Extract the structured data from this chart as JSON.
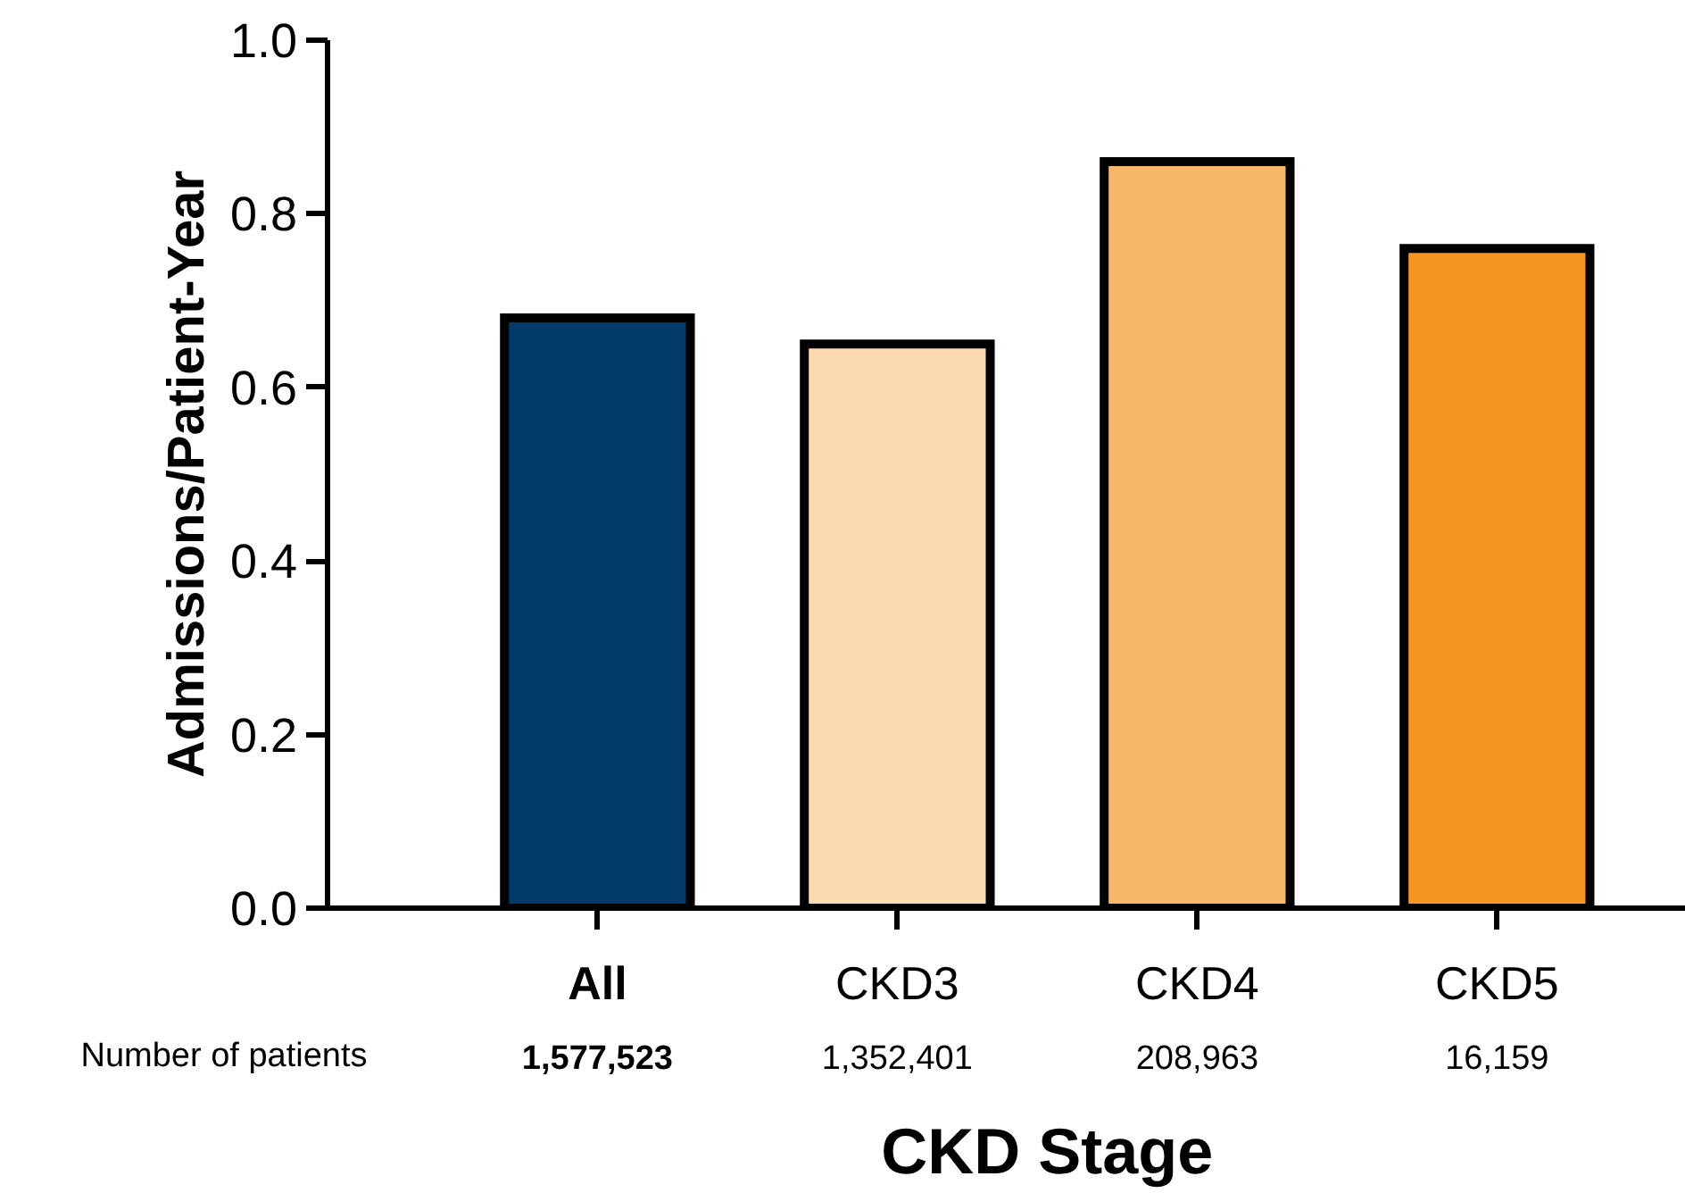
{
  "chart_data": {
    "type": "bar",
    "categories": [
      "All",
      "CKD3",
      "CKD4",
      "CKD5"
    ],
    "values": [
      0.68,
      0.65,
      0.86,
      0.76
    ],
    "colors": [
      "#023a69",
      "#fcdab0",
      "#f9b76b",
      "#f69522"
    ],
    "ylim": [
      0,
      1
    ],
    "yticks": [
      {
        "value": 0,
        "label": "0.0"
      },
      {
        "value": 0.2,
        "label": "0.2"
      },
      {
        "value": 0.4,
        "label": "0.4"
      },
      {
        "value": 0.6,
        "label": "0.6"
      },
      {
        "value": 0.8,
        "label": "0.8"
      },
      {
        "value": 1,
        "label": "1.0"
      }
    ],
    "ylabel": "Admissions/Patient-Year",
    "xlabel": "CKD Stage",
    "annotations": [
      "Number of patients",
      "1,577,523",
      "1,352,401",
      "208,963",
      "16,159"
    ],
    "grid": false
  }
}
